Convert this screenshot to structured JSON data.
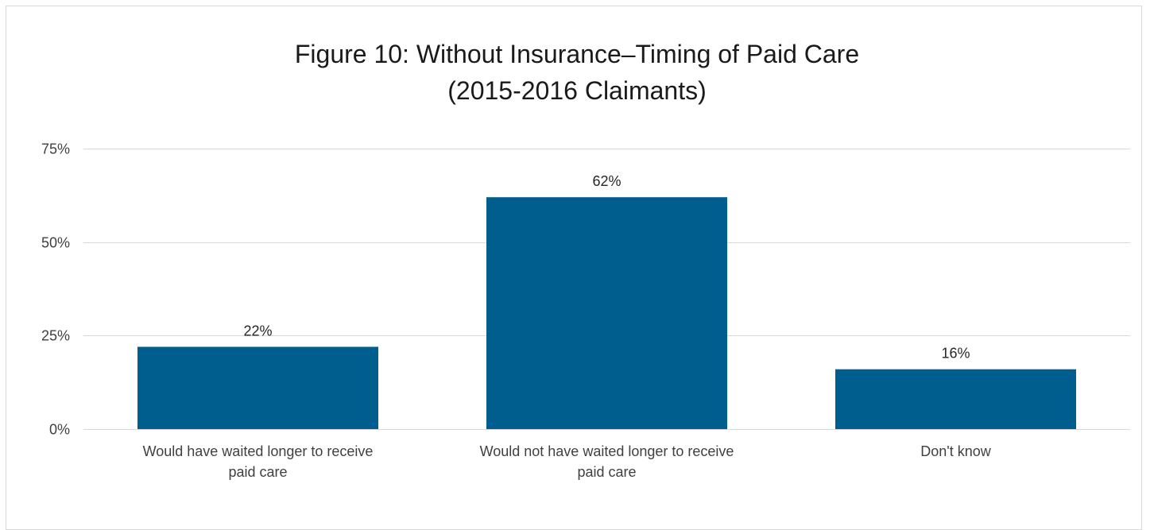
{
  "chart_data": {
    "type": "bar",
    "title": "Figure 10: Without Insurance–Timing of Paid Care",
    "subtitle": "(2015-2016 Claimants)",
    "categories": [
      [
        "Would have waited longer to receive",
        "paid care"
      ],
      [
        "Would not have waited longer to receive",
        "paid care"
      ],
      [
        "Don't know"
      ]
    ],
    "values": [
      22,
      62,
      16
    ],
    "data_labels": [
      "22%",
      "62%",
      "16%"
    ],
    "yticks": [
      0,
      25,
      50,
      75
    ],
    "ytick_labels": [
      "0%",
      "25%",
      "50%",
      "75%"
    ],
    "ylim": [
      0,
      75
    ],
    "grid": true,
    "bar_color": "#005e8f",
    "grid_color": "#d9d9d9"
  }
}
